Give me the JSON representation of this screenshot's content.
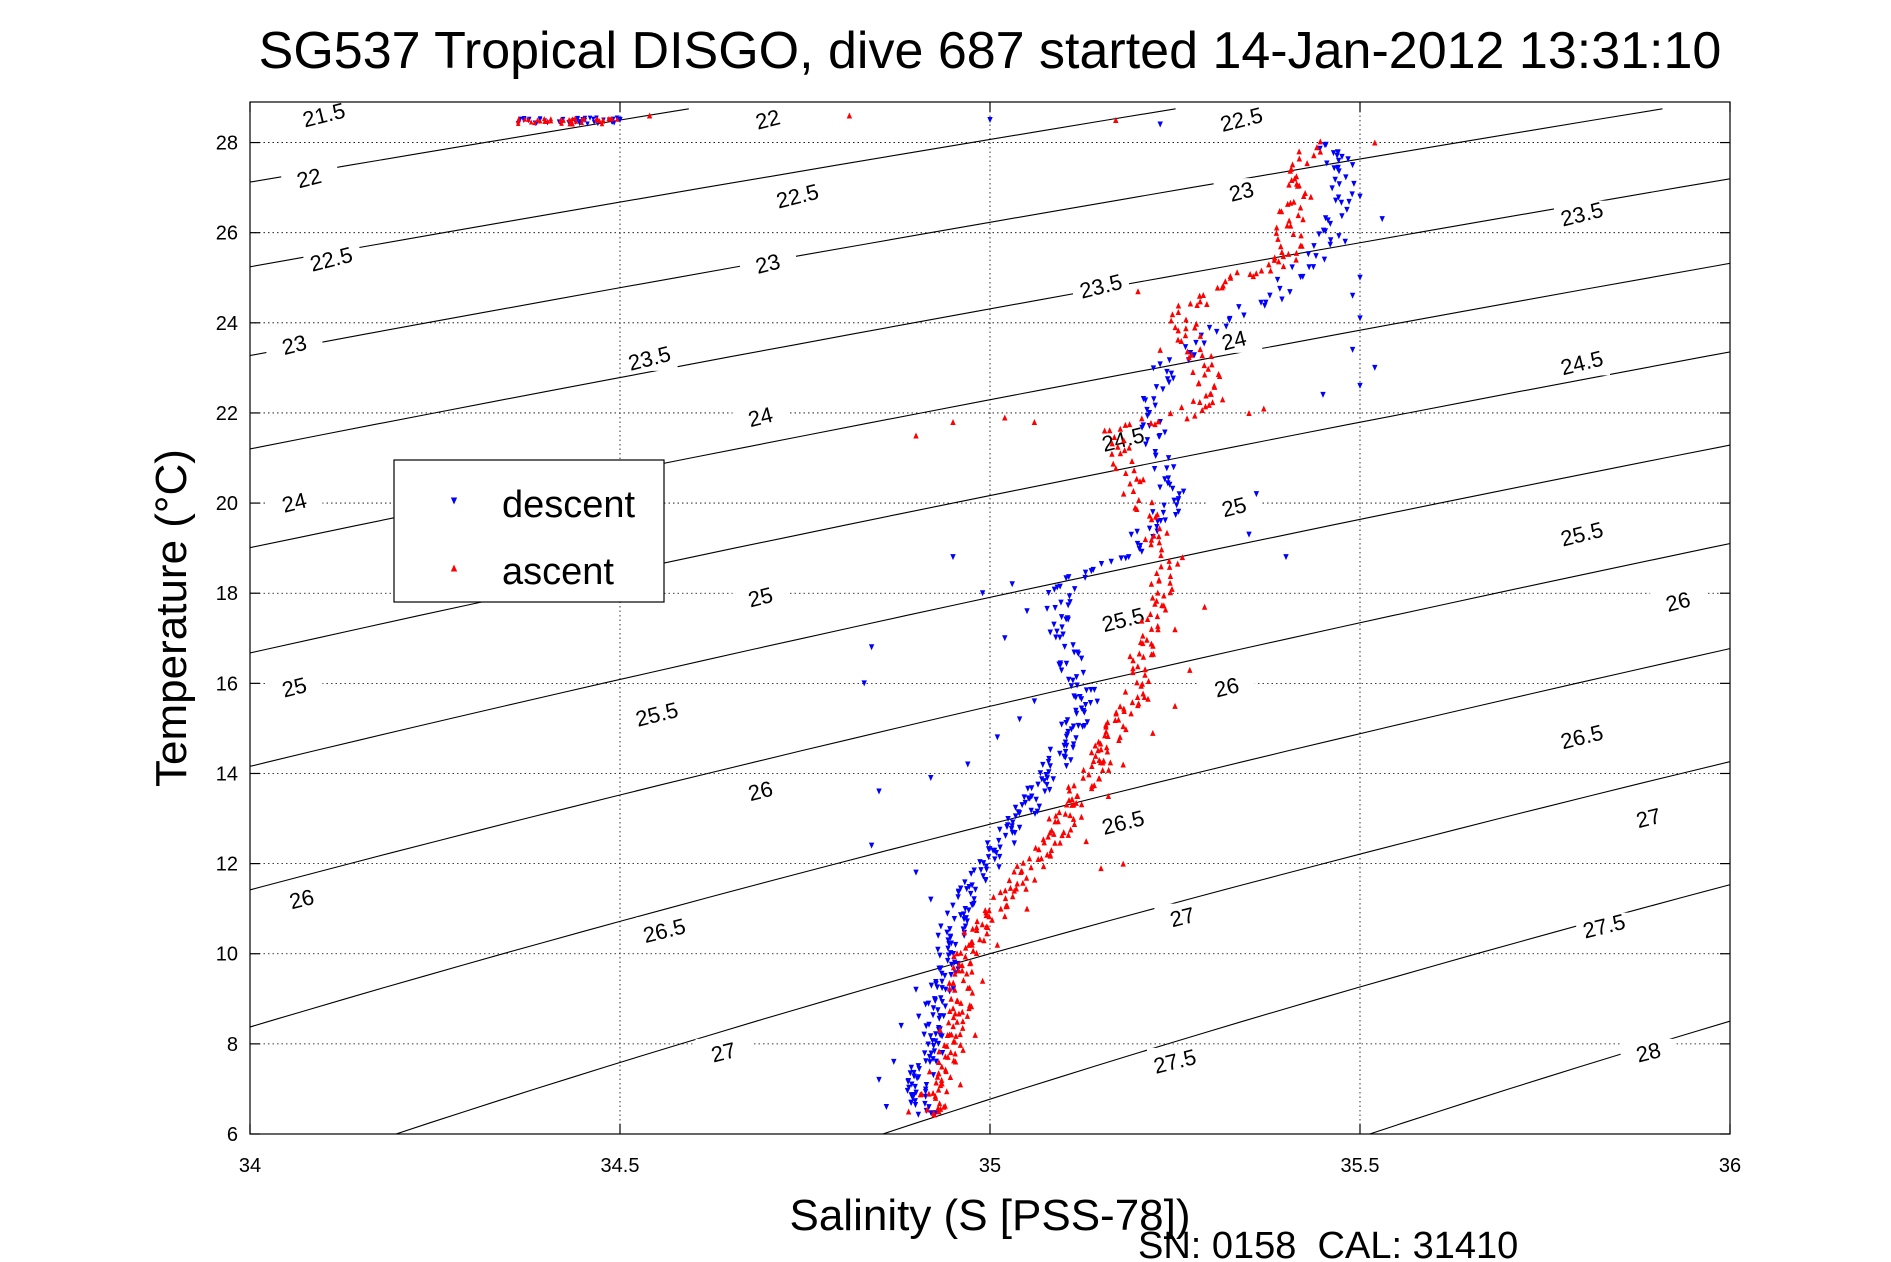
{
  "chart_data": {
    "type": "scatter",
    "title": "SG537 Tropical DISGO, dive 687 started 14-Jan-2012 13:31:10",
    "xlabel": "Salinity (S [PSS-78])",
    "ylabel": "Temperature (°C)",
    "xlim": [
      34,
      36
    ],
    "ylim": [
      6,
      28.9
    ],
    "xticks": [
      34,
      34.5,
      35,
      35.5,
      36
    ],
    "xtick_labels": [
      "34",
      "34.5",
      "35",
      "35.5",
      "36"
    ],
    "yticks": [
      6,
      8,
      10,
      12,
      14,
      16,
      18,
      20,
      22,
      24,
      26,
      28
    ],
    "ytick_labels": [
      "6",
      "8",
      "10",
      "12",
      "14",
      "16",
      "18",
      "20",
      "22",
      "24",
      "26",
      "28"
    ],
    "grid": true,
    "legend_position": "upper-left",
    "footer": "SN: 0158  CAL: 31410",
    "density_contours": {
      "levels": [
        21.5,
        22,
        22.5,
        23,
        23.5,
        24,
        24.5,
        25,
        25.5,
        26,
        26.5,
        27,
        27.5,
        28
      ],
      "color": "#000000",
      "labels": [
        {
          "text": "21.5",
          "s": 34.1,
          "t": 28.6
        },
        {
          "text": "22",
          "s": 34.08,
          "t": 27.2
        },
        {
          "text": "22.5",
          "s": 34.11,
          "t": 25.4
        },
        {
          "text": "23",
          "s": 34.06,
          "t": 23.5
        },
        {
          "text": "24",
          "s": 34.06,
          "t": 20.0
        },
        {
          "text": "25",
          "s": 34.06,
          "t": 15.9
        },
        {
          "text": "26",
          "s": 34.07,
          "t": 11.2
        },
        {
          "text": "22",
          "s": 34.7,
          "t": 28.5
        },
        {
          "text": "22.5",
          "s": 34.74,
          "t": 26.8
        },
        {
          "text": "23",
          "s": 34.7,
          "t": 25.3
        },
        {
          "text": "23.5",
          "s": 34.54,
          "t": 23.2
        },
        {
          "text": "24",
          "s": 34.69,
          "t": 21.9
        },
        {
          "text": "25",
          "s": 34.69,
          "t": 17.9
        },
        {
          "text": "25.5",
          "s": 34.55,
          "t": 15.3
        },
        {
          "text": "26",
          "s": 34.69,
          "t": 13.6
        },
        {
          "text": "26.5",
          "s": 34.56,
          "t": 10.5
        },
        {
          "text": "27",
          "s": 34.64,
          "t": 7.8
        },
        {
          "text": "22.5",
          "s": 35.34,
          "t": 28.5
        },
        {
          "text": "23",
          "s": 35.34,
          "t": 26.9
        },
        {
          "text": "23.5",
          "s": 35.15,
          "t": 24.8
        },
        {
          "text": "24",
          "s": 35.33,
          "t": 23.6
        },
        {
          "text": "24.5",
          "s": 35.18,
          "t": 21.4
        },
        {
          "text": "25",
          "s": 35.33,
          "t": 19.9
        },
        {
          "text": "25.5",
          "s": 35.18,
          "t": 17.4
        },
        {
          "text": "26",
          "s": 35.32,
          "t": 15.9
        },
        {
          "text": "26.5",
          "s": 35.18,
          "t": 12.9
        },
        {
          "text": "27",
          "s": 35.26,
          "t": 10.8
        },
        {
          "text": "27.5",
          "s": 35.25,
          "t": 7.6
        },
        {
          "text": "23.5",
          "s": 35.8,
          "t": 26.4
        },
        {
          "text": "24.5",
          "s": 35.8,
          "t": 23.1
        },
        {
          "text": "25.5",
          "s": 35.8,
          "t": 19.3
        },
        {
          "text": "26",
          "s": 35.93,
          "t": 17.8
        },
        {
          "text": "26.5",
          "s": 35.8,
          "t": 14.8
        },
        {
          "text": "27",
          "s": 35.89,
          "t": 13.0
        },
        {
          "text": "27.5",
          "s": 35.83,
          "t": 10.6
        },
        {
          "text": "28",
          "s": 35.89,
          "t": 7.8
        }
      ]
    },
    "series": [
      {
        "name": "descent",
        "color": "#0000ff",
        "marker": "triangle-down",
        "profile": [
          [
            6.4,
            34.91
          ],
          [
            6.8,
            34.9
          ],
          [
            7.0,
            34.9
          ],
          [
            7.4,
            34.91
          ],
          [
            7.8,
            34.92
          ],
          [
            8.2,
            34.92
          ],
          [
            8.6,
            34.92
          ],
          [
            9.0,
            34.93
          ],
          [
            9.4,
            34.94
          ],
          [
            9.8,
            34.94
          ],
          [
            10.2,
            34.95
          ],
          [
            10.6,
            34.95
          ],
          [
            11.0,
            34.96
          ],
          [
            11.4,
            34.97
          ],
          [
            11.8,
            34.99
          ],
          [
            12.2,
            35.0
          ],
          [
            12.6,
            35.02
          ],
          [
            13.0,
            35.04
          ],
          [
            13.4,
            35.06
          ],
          [
            13.8,
            35.07
          ],
          [
            14.2,
            35.09
          ],
          [
            14.6,
            35.1
          ],
          [
            15.0,
            35.11
          ],
          [
            15.4,
            35.13
          ],
          [
            15.8,
            35.13
          ],
          [
            16.4,
            35.11
          ],
          [
            17.0,
            35.1
          ],
          [
            17.6,
            35.09
          ],
          [
            18.2,
            35.1
          ],
          [
            18.8,
            35.18
          ],
          [
            19.4,
            35.22
          ],
          [
            20.0,
            35.25
          ],
          [
            20.6,
            35.24
          ],
          [
            21.4,
            35.22
          ],
          [
            22.2,
            35.22
          ],
          [
            23.0,
            35.24
          ],
          [
            23.8,
            35.3
          ],
          [
            24.6,
            35.38
          ],
          [
            25.4,
            35.44
          ],
          [
            26.2,
            35.47
          ],
          [
            27.0,
            35.48
          ],
          [
            27.6,
            35.47
          ],
          [
            28.0,
            35.46
          ],
          [
            28.5,
            34.4
          ]
        ],
        "scatter": [
          [
            6.6,
            34.86
          ],
          [
            7.2,
            34.85
          ],
          [
            7.6,
            34.87
          ],
          [
            8.4,
            34.88
          ],
          [
            9.2,
            34.9
          ],
          [
            10.4,
            34.93
          ],
          [
            11.2,
            34.92
          ],
          [
            11.8,
            34.9
          ],
          [
            12.4,
            34.84
          ],
          [
            13.6,
            34.85
          ],
          [
            13.9,
            34.92
          ],
          [
            14.2,
            34.97
          ],
          [
            14.8,
            35.01
          ],
          [
            15.2,
            35.04
          ],
          [
            15.6,
            35.06
          ],
          [
            16.0,
            34.83
          ],
          [
            16.8,
            34.84
          ],
          [
            17.0,
            35.02
          ],
          [
            17.6,
            35.05
          ],
          [
            18.0,
            34.99
          ],
          [
            18.2,
            35.03
          ],
          [
            18.8,
            34.95
          ],
          [
            19.8,
            35.22
          ],
          [
            20.2,
            35.36
          ],
          [
            18.8,
            35.4
          ],
          [
            19.3,
            35.35
          ],
          [
            21.8,
            35.23
          ],
          [
            22.4,
            35.45
          ],
          [
            22.6,
            35.5
          ],
          [
            23.0,
            35.52
          ],
          [
            23.4,
            35.49
          ],
          [
            24.1,
            35.5
          ],
          [
            24.6,
            35.49
          ],
          [
            25.0,
            35.5
          ],
          [
            25.8,
            35.48
          ],
          [
            26.3,
            35.53
          ],
          [
            26.8,
            35.5
          ],
          [
            27.5,
            35.49
          ],
          [
            28.5,
            34.37
          ],
          [
            28.5,
            34.45
          ],
          [
            28.5,
            35.0
          ],
          [
            28.4,
            35.23
          ],
          [
            28.5,
            34.5
          ]
        ]
      },
      {
        "name": "ascent",
        "color": "#ff0000",
        "marker": "triangle-up",
        "profile": [
          [
            6.4,
            34.93
          ],
          [
            6.8,
            34.92
          ],
          [
            7.2,
            34.93
          ],
          [
            7.6,
            34.94
          ],
          [
            8.0,
            34.95
          ],
          [
            8.4,
            34.95
          ],
          [
            8.8,
            34.96
          ],
          [
            9.2,
            34.96
          ],
          [
            9.6,
            34.96
          ],
          [
            10.0,
            34.97
          ],
          [
            10.4,
            34.98
          ],
          [
            10.8,
            35.0
          ],
          [
            11.2,
            35.02
          ],
          [
            11.6,
            35.04
          ],
          [
            12.0,
            35.06
          ],
          [
            12.4,
            35.08
          ],
          [
            12.8,
            35.1
          ],
          [
            13.2,
            35.11
          ],
          [
            13.6,
            35.12
          ],
          [
            14.0,
            35.14
          ],
          [
            14.4,
            35.15
          ],
          [
            14.8,
            35.16
          ],
          [
            15.2,
            35.18
          ],
          [
            15.6,
            35.2
          ],
          [
            16.2,
            35.2
          ],
          [
            16.8,
            35.21
          ],
          [
            17.4,
            35.22
          ],
          [
            18.0,
            35.23
          ],
          [
            18.6,
            35.24
          ],
          [
            19.4,
            35.23
          ],
          [
            20.2,
            35.2
          ],
          [
            21.0,
            35.18
          ],
          [
            21.6,
            35.17
          ],
          [
            22.0,
            35.27
          ],
          [
            22.4,
            35.3
          ],
          [
            23.0,
            35.29
          ],
          [
            23.6,
            35.27
          ],
          [
            24.2,
            35.26
          ],
          [
            24.8,
            35.3
          ],
          [
            25.2,
            35.38
          ],
          [
            25.6,
            35.41
          ],
          [
            26.2,
            35.4
          ],
          [
            26.8,
            35.42
          ],
          [
            27.4,
            35.41
          ],
          [
            28.0,
            35.44
          ]
        ],
        "scatter": [
          [
            6.5,
            34.89
          ],
          [
            7.1,
            34.96
          ],
          [
            8.2,
            34.98
          ],
          [
            9.4,
            34.99
          ],
          [
            10.2,
            35.01
          ],
          [
            11.0,
            35.05
          ],
          [
            11.9,
            35.15
          ],
          [
            12.0,
            35.18
          ],
          [
            12.5,
            35.13
          ],
          [
            13.0,
            35.08
          ],
          [
            13.5,
            35.16
          ],
          [
            14.2,
            35.18
          ],
          [
            14.9,
            35.22
          ],
          [
            15.5,
            35.25
          ],
          [
            16.3,
            35.27
          ],
          [
            17.2,
            35.25
          ],
          [
            17.7,
            35.29
          ],
          [
            18.8,
            35.26
          ],
          [
            19.2,
            35.21
          ],
          [
            21.5,
            34.9
          ],
          [
            21.8,
            34.95
          ],
          [
            21.9,
            35.02
          ],
          [
            21.8,
            35.06
          ],
          [
            22.0,
            35.35
          ],
          [
            22.1,
            35.37
          ],
          [
            23.4,
            35.23
          ],
          [
            24.7,
            35.2
          ],
          [
            28.0,
            35.52
          ],
          [
            28.5,
            34.42
          ],
          [
            28.6,
            34.54
          ],
          [
            28.6,
            34.81
          ],
          [
            28.5,
            35.17
          ],
          [
            28.5,
            34.47
          ]
        ]
      }
    ]
  }
}
